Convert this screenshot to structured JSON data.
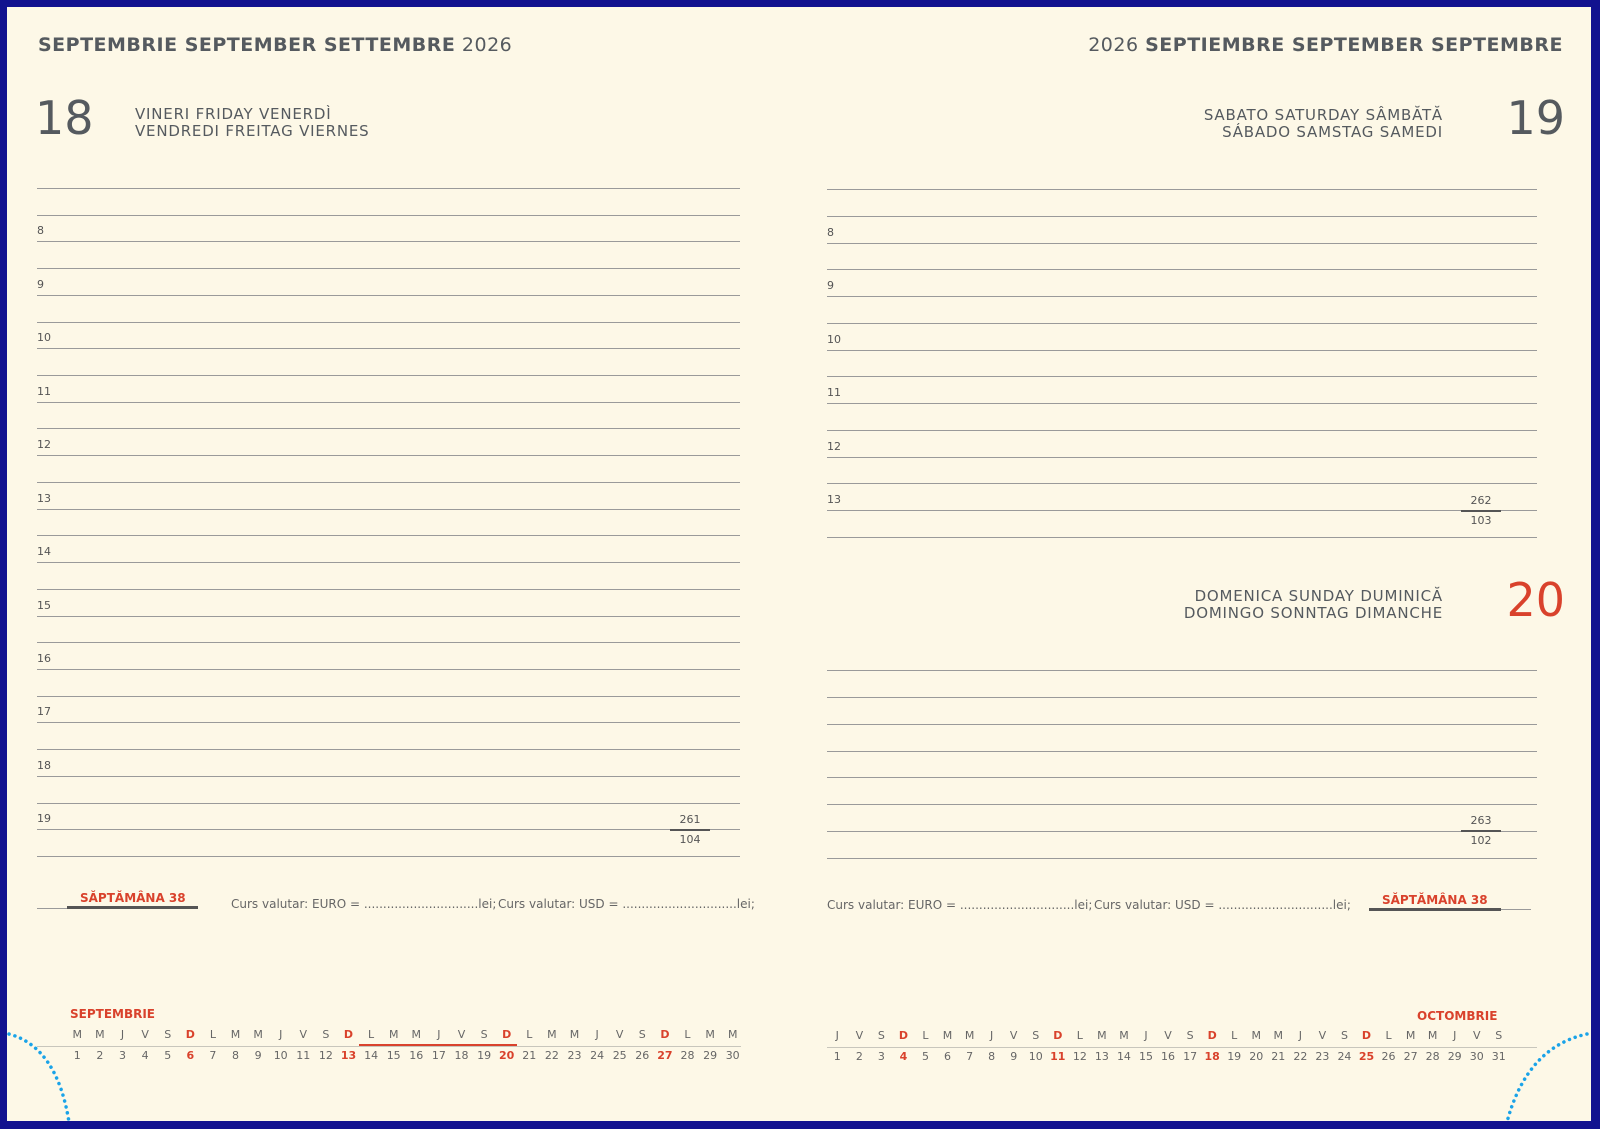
{
  "left": {
    "header": {
      "months": "SEPTEMBRIE SEPTEMBER SETTEMBRE",
      "year": "2026"
    },
    "day_number": "18",
    "day_names": [
      "VINERI FRIDAY VENERDÌ",
      "VENDREDI FREITAG VIERNES"
    ],
    "hours": [
      "8",
      "9",
      "10",
      "11",
      "12",
      "13",
      "14",
      "15",
      "16",
      "17",
      "18",
      "19"
    ],
    "page_top": "261",
    "page_bottom": "104",
    "week_label": "SĂPTĂMÂNA 38",
    "curs_euro": "Curs valutar: EURO = ..............................lei;",
    "curs_usd": "Curs valutar: USD = ..............................lei;",
    "calendar": {
      "month": "SEPTEMBRIE",
      "weekdays": [
        "M",
        "M",
        "J",
        "V",
        "S",
        "D",
        "L",
        "M",
        "M",
        "J",
        "V",
        "S",
        "D",
        "L",
        "M",
        "M",
        "J",
        "V",
        "S",
        "D",
        "L",
        "M",
        "M",
        "J",
        "V",
        "S",
        "D",
        "L",
        "M",
        "M"
      ],
      "days": [
        "1",
        "2",
        "3",
        "4",
        "5",
        "6",
        "7",
        "8",
        "9",
        "10",
        "11",
        "12",
        "13",
        "14",
        "15",
        "16",
        "17",
        "18",
        "19",
        "20",
        "21",
        "22",
        "23",
        "24",
        "25",
        "26",
        "27",
        "28",
        "29",
        "30"
      ],
      "sundays": [
        "6",
        "13",
        "20",
        "27"
      ],
      "highlighted_week": [
        "14",
        "20"
      ]
    }
  },
  "right": {
    "header": {
      "year": "2026",
      "months": "SEPTIEMBRE SEPTEMBER SEPTEMBRE"
    },
    "saturday": {
      "day_number": "19",
      "day_names": [
        "SABATO SATURDAY SÂMBĂTĂ",
        "SÁBADO SAMSTAG SAMEDI"
      ],
      "hours": [
        "8",
        "9",
        "10",
        "11",
        "12",
        "13"
      ],
      "page_top": "262",
      "page_bottom": "103"
    },
    "sunday": {
      "day_number": "20",
      "day_names": [
        "DOMENICA SUNDAY DUMINICĂ",
        "DOMINGO SONNTAG DIMANCHE"
      ],
      "page_top": "263",
      "page_bottom": "102"
    },
    "week_label": "SĂPTĂMÂNA 38",
    "curs_euro": "Curs valutar: EURO = ..............................lei;",
    "curs_usd": "Curs valutar: USD = ..............................lei;",
    "calendar": {
      "month": "OCTOMBRIE",
      "weekdays": [
        "J",
        "V",
        "S",
        "D",
        "L",
        "M",
        "M",
        "J",
        "V",
        "S",
        "D",
        "L",
        "M",
        "M",
        "J",
        "V",
        "S",
        "D",
        "L",
        "M",
        "M",
        "J",
        "V",
        "S",
        "D",
        "L",
        "M",
        "M",
        "J",
        "V",
        "S"
      ],
      "days": [
        "1",
        "2",
        "3",
        "4",
        "5",
        "6",
        "7",
        "8",
        "9",
        "10",
        "11",
        "12",
        "13",
        "14",
        "15",
        "16",
        "17",
        "18",
        "19",
        "20",
        "21",
        "22",
        "23",
        "24",
        "25",
        "26",
        "27",
        "28",
        "29",
        "30",
        "31"
      ],
      "sundays": [
        "4",
        "11",
        "18",
        "25"
      ]
    }
  },
  "colors": {
    "accent": "#d9422c",
    "text": "#555a5f",
    "background": "#fdf8e7",
    "frame": "#12128f",
    "dots": "#1aa3e8"
  }
}
